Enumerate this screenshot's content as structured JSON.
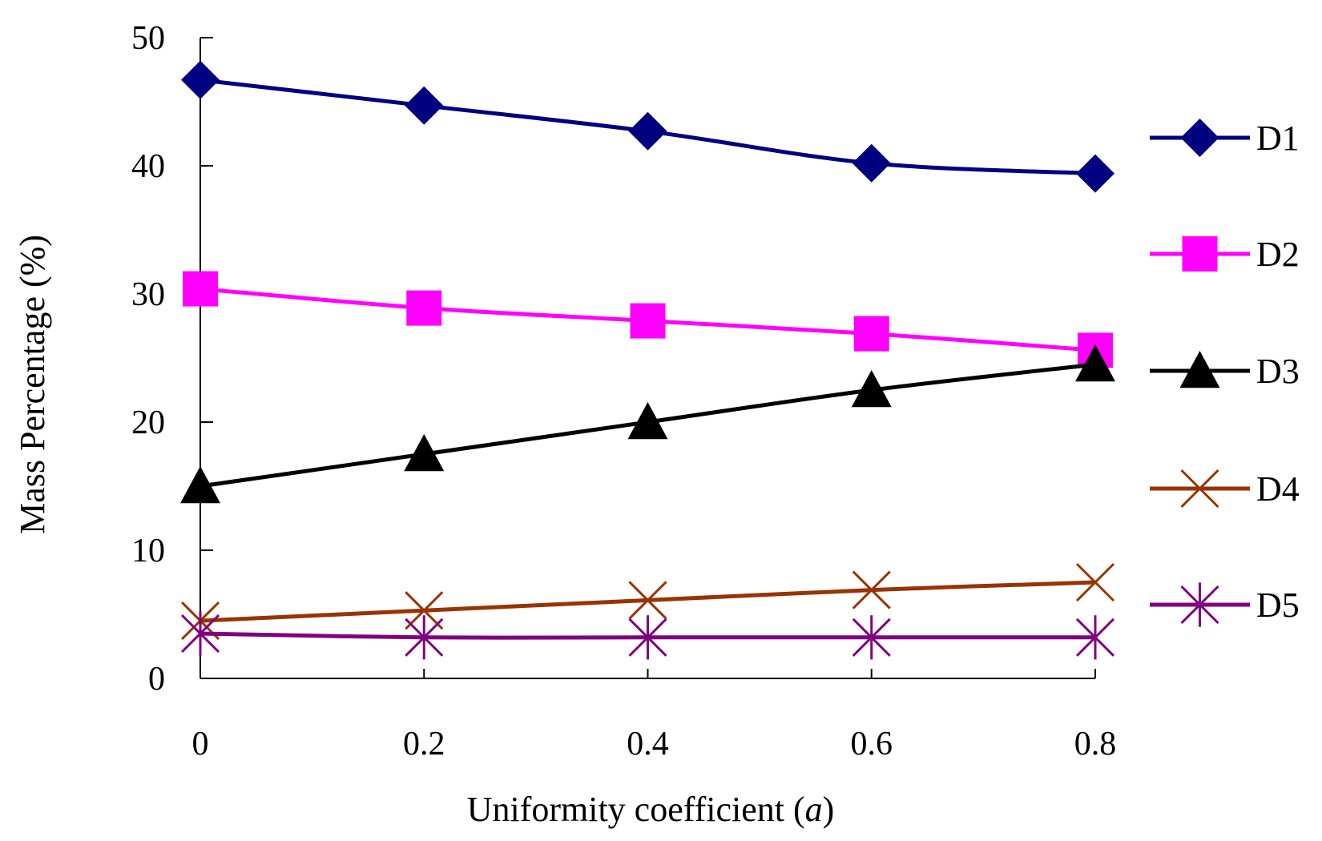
{
  "chart_data": {
    "type": "line",
    "title": "",
    "xlabel": "Uniformity coefficient (",
    "xlabel_italic": "a",
    "xlabel_close": ")",
    "ylabel": "Mass Percentage (%)",
    "x": [
      0,
      0.2,
      0.4,
      0.6,
      0.8
    ],
    "x_tick_labels": [
      "0",
      "0.2",
      "0.4",
      "0.6",
      "0.8"
    ],
    "y_ticks": [
      0,
      10,
      20,
      30,
      40,
      50
    ],
    "y_tick_labels": [
      "0",
      "10",
      "20",
      "30",
      "40",
      "50"
    ],
    "ylim": [
      0,
      50
    ],
    "xlim": [
      0,
      0.8
    ],
    "grid": false,
    "legend_position": "right",
    "series": [
      {
        "name": "D1",
        "marker": "diamond",
        "color": "#000080",
        "values": [
          46.7,
          44.7,
          42.7,
          40.2,
          39.4
        ]
      },
      {
        "name": "D2",
        "marker": "square",
        "color": "#FF00FF",
        "values": [
          30.4,
          28.9,
          27.9,
          26.9,
          25.6
        ]
      },
      {
        "name": "D3",
        "marker": "triangle",
        "color": "#000000",
        "values": [
          15.0,
          17.5,
          20.0,
          22.5,
          24.5
        ]
      },
      {
        "name": "D4",
        "marker": "x",
        "color": "#993300",
        "values": [
          4.5,
          5.3,
          6.1,
          6.9,
          7.5
        ]
      },
      {
        "name": "D5",
        "marker": "asterisk",
        "color": "#800080",
        "values": [
          3.5,
          3.2,
          3.2,
          3.2,
          3.2
        ]
      }
    ]
  }
}
